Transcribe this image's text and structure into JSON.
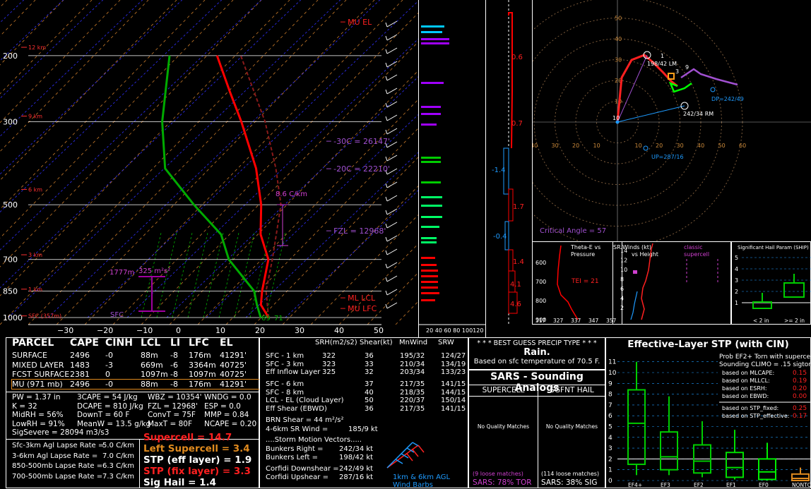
{
  "chart_data": {
    "type": "line",
    "skewt": {
      "pressure_ticks": [
        "200",
        "300",
        "500",
        "700",
        "850",
        "1000"
      ],
      "height_labels": [
        "12 km",
        "9 km",
        "6 km",
        "3 km",
        "1 km",
        "SFC (357m)"
      ],
      "temp_ticks": [
        "−30",
        "−20",
        "−10",
        "0",
        "10",
        "20",
        "30",
        "40",
        "50"
      ],
      "annotations": {
        "mu_el": "MU EL",
        "ml_lcl": "ML LCL",
        "mu_lfc": "MU LFC",
        "m30c": "-30C = 26147'",
        "m20c": "-20C = 22210'",
        "fzl": "FZL = 12968'",
        "lapse": "8.6 C/km",
        "depth": "1777m",
        "srh": "325 m²s²",
        "sfc": "SFC",
        "sfc_td_t": "69",
        "sfc_t": "71"
      },
      "temperature_profile": [
        [
          1000,
          22
        ],
        [
          925,
          17
        ],
        [
          850,
          14
        ],
        [
          700,
          8
        ],
        [
          600,
          0
        ],
        [
          500,
          -7
        ],
        [
          400,
          -17
        ],
        [
          300,
          -32
        ],
        [
          250,
          -42
        ],
        [
          200,
          -54
        ]
      ],
      "dewpoint_profile": [
        [
          1000,
          20
        ],
        [
          925,
          16
        ],
        [
          850,
          12
        ],
        [
          700,
          -2
        ],
        [
          600,
          -10
        ],
        [
          500,
          -24
        ],
        [
          400,
          -40
        ],
        [
          300,
          -52
        ],
        [
          200,
          -66
        ]
      ]
    },
    "inferred_wind": {
      "values": [
        "0.6",
        "0.7",
        "-1.4",
        "1.7",
        "-0.4",
        "1.4",
        "4.1",
        "4.6"
      ]
    },
    "hodograph": {
      "rings": [
        "60",
        "50",
        "40",
        "30",
        "20",
        "10"
      ],
      "xticks": [
        "40",
        "30",
        "20",
        "10",
        "10",
        "20",
        "30",
        "40",
        "50",
        "60"
      ],
      "labels": {
        "lm": "198/42 LM",
        "rm": "242/34 RM",
        "dp": "DP=242/49",
        "up": "UP=287/16",
        "crit": "Critical Angle = 57",
        "k1": "1",
        "k3": "3",
        "k9": "9",
        "k10": "10"
      }
    },
    "theta_e": {
      "title1": "Theta-E vs",
      "title2": "Pressure",
      "tei": "TEI = 21",
      "ticks": [
        "600",
        "700",
        "800",
        "900"
      ],
      "xticks": [
        "317",
        "327",
        "337",
        "347",
        "357"
      ]
    },
    "sr_winds": {
      "title1": "SR Winds (kt)",
      "title2": "vs Height",
      "class1": "classic",
      "class2": "supercell",
      "ticks": [
        "14",
        "12",
        "10",
        "8",
        "6",
        "4",
        "2"
      ]
    },
    "hail": {
      "title": "Significant Hail Param (SHIP)",
      "ticks": [
        "5",
        "4",
        "3",
        "2",
        "1"
      ],
      "xlabels": [
        "< 2 in",
        ">= 2 in"
      ]
    }
  },
  "parcel_table": {
    "headers": [
      "PARCEL",
      "CAPE",
      "CINH",
      "LCL",
      "LI",
      "LFC",
      "EL"
    ],
    "rows": [
      [
        "SURFACE",
        "2496",
        "-0",
        "88m",
        "-8",
        "176m",
        "41291'"
      ],
      [
        "MIXED LAYER",
        "1483",
        "-3",
        "669m",
        "-6",
        "3364m",
        "40725'"
      ],
      [
        "FCST SURFACE",
        "2381",
        "0",
        "1097m",
        "-8",
        "1097m",
        "40725'"
      ],
      [
        "MU  (971 mb)",
        "2496",
        "-0",
        "88m",
        "-8",
        "176m",
        "41291'"
      ]
    ]
  },
  "indices": [
    [
      "PW = 1.37 in",
      "3CAPE = 54 J/kg",
      "WBZ = 10354'",
      "WNDG = 0.0"
    ],
    [
      "K = 32",
      "DCAPE = 810 J/kg",
      "FZL = 12968'",
      "ESP = 0.0"
    ],
    [
      "MidRH = 56%",
      "DownT = 60 F",
      "ConvT = 75F",
      "MMP = 0.84"
    ],
    [
      "LowRH = 91%",
      "MeanW = 13.5 g/kg",
      "MaxT = 80F",
      "NCAPE = 0.20"
    ],
    [
      "SigSevere = 28094 m3/s3",
      "",
      "",
      ""
    ]
  ],
  "lapse_rates": [
    [
      "Sfc-3km Agl Lapse Rate =",
      "5.0 C/km"
    ],
    [
      "3-6km Agl Lapse Rate =",
      "7.0 C/km"
    ],
    [
      "850-500mb Lapse Rate =",
      "6.3 C/km"
    ],
    [
      "700-500mb Lapse Rate =",
      "7.3 C/km"
    ]
  ],
  "composites": {
    "supercell": "Supercell = 14.7",
    "left_supercell": "Left Supercell = 3.4",
    "stp_eff": "STP (eff layer) = 1.9",
    "stp_fix": "STP (fix layer) = 3.3",
    "sig_hail": "Sig Hail = 1.4"
  },
  "kinematics": {
    "headers": [
      "SRH(m2/s2)",
      "Shear(kt)",
      "MnWind",
      "SRW"
    ],
    "rows1": [
      [
        "SFC - 1 km",
        "322",
        "36",
        "195/32",
        "124/27"
      ],
      [
        "SFC - 3 km",
        "323",
        "33",
        "210/34",
        "134/19"
      ],
      [
        "Eff Inflow Layer",
        "325",
        "32",
        "203/34",
        "133/23"
      ]
    ],
    "rows2": [
      [
        "SFC - 6 km",
        "",
        "37",
        "217/35",
        "141/15"
      ],
      [
        "SFC - 8 km",
        "",
        "40",
        "218/35",
        "144/15"
      ],
      [
        "LCL - EL (Cloud Layer)",
        "",
        "50",
        "220/37",
        "150/14"
      ],
      [
        "Eff Shear (EBWD)",
        "",
        "36",
        "217/35",
        "141/15"
      ]
    ],
    "brn": "BRN Shear = 44 m²/s²",
    "wind46": "4-6km SR Wind =",
    "wind46_val": "185/9 kt",
    "storm_motion": "....Storm Motion Vectors.....",
    "motions": [
      [
        "Bunkers Right =",
        "242/34 kt"
      ],
      [
        "Bunkers Left =",
        "198/42 kt"
      ],
      [
        "Corfidi Downshear =",
        "242/49 kt"
      ],
      [
        "Corfidi Upshear =",
        "287/16 kt"
      ]
    ],
    "barb_label1": "1km & 6km AGL",
    "barb_label2": "Wind Barbs"
  },
  "precip": {
    "title": "* * * BEST GUESS PRECIP TYPE * * *",
    "type": "Rain.",
    "note": "Based on sfc temperature of 70.5 F."
  },
  "sars": {
    "title": "SARS - Sounding Analogs",
    "supercell": "SUPERCELL",
    "sgfnt_hail": "SGFNT HAIL",
    "no_quality": "No Quality Matches",
    "loose_super": "(9 loose matches)",
    "loose_hail": "(114 loose matches)",
    "super_pct": "SARS: 78% TOR",
    "hail_pct": "SARS: 38% SIG"
  },
  "stp_box": {
    "title": "Effective-Layer STP (with CIN)",
    "yticks": [
      "11",
      "10",
      "9",
      "8",
      "7",
      "6",
      "5",
      "4",
      "3",
      "2",
      "1",
      "0"
    ],
    "xlabels": [
      "EF4+",
      "EF3",
      "EF2",
      "EF1",
      "EF0",
      "NONTOR"
    ],
    "prob_title1": "Prob EF2+ Torn with supercell",
    "prob_title2": "Sounding CLIMO = .15 sigtor",
    "probs": [
      [
        "based on MLCAPE:",
        "0.15"
      ],
      [
        "based on MLLCL:",
        "0.19"
      ],
      [
        "based on ESRH:",
        "0.20"
      ],
      [
        "based on EBWD:",
        "0.00"
      ],
      [
        "based on STP_fixed:",
        "0.25"
      ],
      [
        "based on STP_effective:",
        "0.17"
      ]
    ]
  },
  "colors": {
    "temp": "#ff0000",
    "dew": "#00aa00",
    "parcel": "#ff5050",
    "dry": "#cc7a28",
    "mix": "#00b300",
    "hodo_purple": "#a050d0",
    "cyan": "#00c8ff",
    "orange": "#ff9f1a",
    "box_green": "#00cc00"
  }
}
